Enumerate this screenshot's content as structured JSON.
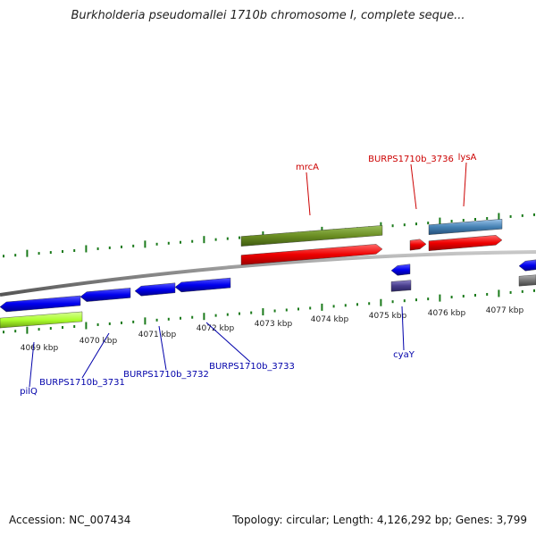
{
  "title": "Burkholderia pseudomallei 1710b chromosome I, complete seque...",
  "footer": {
    "accession": "Accession: NC_007434",
    "summary": "Topology: circular; Length: 4,126,292 bp; Genes: 3,799"
  },
  "colors": {
    "tick": "#1a7a1a",
    "backbone": "#8a8a8a",
    "label_red": "#cc0000",
    "label_blue": "#0000aa"
  },
  "chart_data": {
    "type": "genome_map",
    "axis": {
      "unit": "kbp",
      "ticks": [
        "4069 kbp",
        "4070 kbp",
        "4071 kbp",
        "4072 kbp",
        "4073 kbp",
        "4074 kbp",
        "4075 kbp",
        "4076 kbp",
        "4077 kbp"
      ]
    },
    "gene_labels_top": [
      "mrcA",
      "BURPS1710b_3736",
      "lysA"
    ],
    "gene_labels_bottom": [
      "pilQ",
      "BURPS1710b_3731",
      "BURPS1710b_3732",
      "BURPS1710b_3733",
      "cyaY"
    ]
  }
}
